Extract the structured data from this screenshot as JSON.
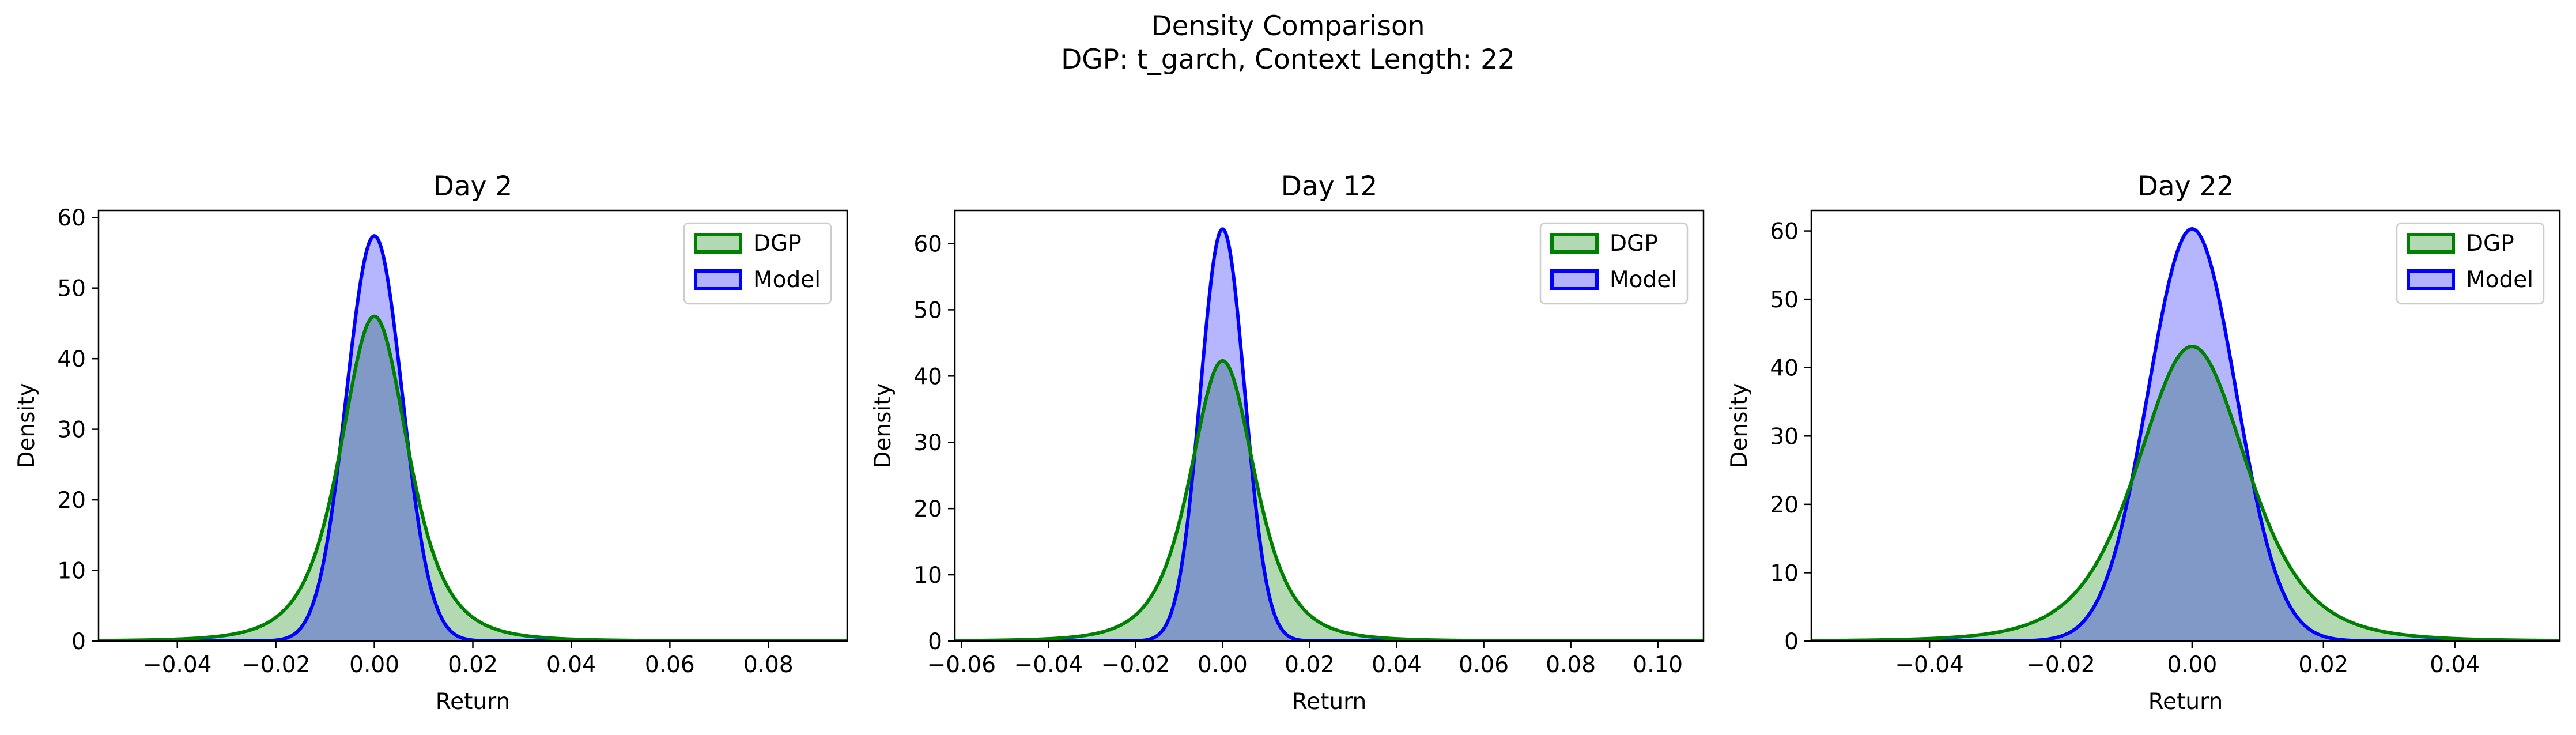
{
  "figure": {
    "title": "Density Comparison",
    "subtitle": "DGP: t_garch, Context Length: 22"
  },
  "colors": {
    "dgp_line": "#008000",
    "dgp_fill": "#b2d9b2",
    "model_line": "#0000ff",
    "model_fill": "#b2b2ff",
    "overlap_fill": "#8099c6"
  },
  "chart_data": [
    {
      "type": "area",
      "title": "Day 2",
      "xlabel": "Return",
      "ylabel": "Density",
      "xlim": [
        -0.056,
        0.096
      ],
      "ylim": [
        0,
        61
      ],
      "xticks": [
        -0.04,
        -0.02,
        0.0,
        0.02,
        0.04,
        0.06,
        0.08
      ],
      "xtick_labels": [
        "−0.04",
        "−0.02",
        "0.00",
        "0.02",
        "0.04",
        "0.06",
        "0.08"
      ],
      "yticks": [
        0,
        10,
        20,
        30,
        40,
        50,
        60
      ],
      "ytick_labels": [
        "0",
        "10",
        "20",
        "30",
        "40",
        "50",
        "60"
      ],
      "legend": "top-right",
      "grid": false,
      "series": [
        {
          "name": "DGP",
          "shape": "student_t",
          "peak": 46.0,
          "scale": 0.0072,
          "df": 3.5
        },
        {
          "name": "Model",
          "shape": "gaussian",
          "peak": 57.4,
          "sigma": 0.0057
        }
      ]
    },
    {
      "type": "area",
      "title": "Day 12",
      "xlabel": "Return",
      "ylabel": "Density",
      "xlim": [
        -0.0615,
        0.1105
      ],
      "ylim": [
        0,
        65
      ],
      "xticks": [
        -0.06,
        -0.04,
        -0.02,
        0.0,
        0.02,
        0.04,
        0.06,
        0.08,
        0.1
      ],
      "xtick_labels": [
        "−0.06",
        "−0.04",
        "−0.02",
        "0.00",
        "0.02",
        "0.04",
        "0.06",
        "0.08",
        "0.10"
      ],
      "yticks": [
        0,
        10,
        20,
        30,
        40,
        50,
        60
      ],
      "ytick_labels": [
        "0",
        "10",
        "20",
        "30",
        "40",
        "50",
        "60"
      ],
      "legend": "top-right",
      "grid": false,
      "series": [
        {
          "name": "DGP",
          "shape": "student_t",
          "peak": 42.3,
          "scale": 0.0078,
          "df": 3.5
        },
        {
          "name": "Model",
          "shape": "gaussian",
          "peak": 62.2,
          "sigma": 0.0051
        }
      ]
    },
    {
      "type": "area",
      "title": "Day 22",
      "xlabel": "Return",
      "ylabel": "Density",
      "xlim": [
        -0.058,
        0.056
      ],
      "ylim": [
        0,
        63
      ],
      "xticks": [
        -0.04,
        -0.02,
        0.0,
        0.02,
        0.04
      ],
      "xtick_labels": [
        "−0.04",
        "−0.02",
        "0.00",
        "0.02",
        "0.04"
      ],
      "yticks": [
        0,
        10,
        20,
        30,
        40,
        50,
        60
      ],
      "ytick_labels": [
        "0",
        "10",
        "20",
        "30",
        "40",
        "50",
        "60"
      ],
      "legend": "top-right",
      "grid": false,
      "series": [
        {
          "name": "DGP",
          "shape": "student_t",
          "peak": 43.1,
          "scale": 0.0087,
          "df": 4.5
        },
        {
          "name": "Model",
          "shape": "gaussian",
          "peak": 60.3,
          "sigma": 0.0067
        }
      ]
    }
  ]
}
